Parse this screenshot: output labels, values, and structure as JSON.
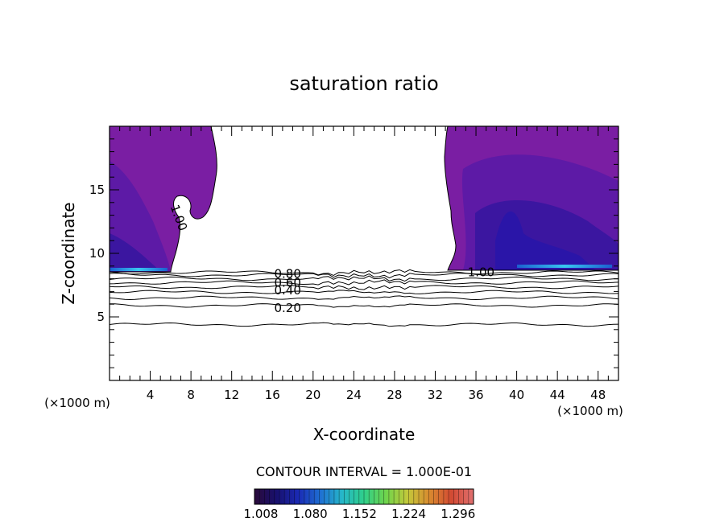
{
  "chart_data": {
    "type": "contour",
    "title": "saturation ratio",
    "xlabel": "X-coordinate",
    "ylabel": "Z-coordinate",
    "x_unit_label": "(×1000 m)",
    "y_unit_label": "(×1000 m)",
    "xlim": [
      0,
      50
    ],
    "ylim": [
      0,
      20
    ],
    "x_ticks": [
      4,
      8,
      12,
      16,
      20,
      24,
      28,
      32,
      36,
      40,
      44,
      48
    ],
    "y_ticks": [
      5,
      10,
      15
    ],
    "contour_interval_text": "CONTOUR INTERVAL = 1.000E-01",
    "contour_labels": [
      {
        "text": "0.80",
        "x": 17.5,
        "y": 8.4
      },
      {
        "text": "0.60",
        "x": 17.5,
        "y": 7.7
      },
      {
        "text": "0.40",
        "x": 17.5,
        "y": 7.1
      },
      {
        "text": "0.20",
        "x": 17.5,
        "y": 5.7
      },
      {
        "text": "1.00",
        "x": 36.5,
        "y": 8.5
      },
      {
        "text": "1.00",
        "x": 6.8,
        "y": 12.8
      }
    ],
    "unsaturated_contours_z": [
      4.4,
      5.9,
      6.5,
      6.95,
      7.35,
      7.7,
      8.0,
      8.3,
      8.5
    ],
    "colorbar": {
      "min": 1.008,
      "max": 1.328,
      "tick_labels": [
        "1.008",
        "1.080",
        "1.152",
        "1.224",
        "1.296"
      ],
      "tick_values": [
        1.008,
        1.08,
        1.152,
        1.224,
        1.296
      ],
      "colors": [
        "#2a0a3a",
        "#18106e",
        "#1a2ab5",
        "#1f6fd2",
        "#26b7c9",
        "#2fcf8a",
        "#6fd44c",
        "#c4c83a",
        "#d9892f",
        "#d24a33",
        "#e07070"
      ]
    },
    "supersaturated_regions": [
      {
        "name": "left",
        "x_range": [
          0,
          10.5
        ],
        "z_range": [
          8.6,
          20
        ]
      },
      {
        "name": "right",
        "x_range": [
          33,
          50
        ],
        "z_range": [
          8.6,
          20
        ]
      }
    ],
    "colors": {
      "base_fill": "#7a1ea3",
      "mid_fill": "#5d1aa6",
      "deep_fill": "#3b16a0",
      "core_fill": "#2a15a8",
      "streak": "#38c7f0"
    }
  }
}
